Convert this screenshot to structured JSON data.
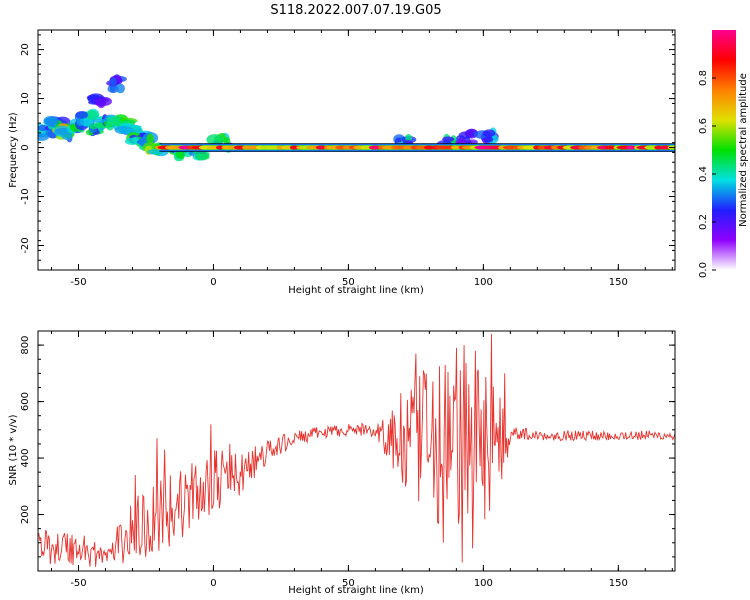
{
  "figure": {
    "title": "S118.2022.007.07.19.G05"
  },
  "chart_data": [
    {
      "type": "heatmap",
      "xlabel": "Height of straight line (km)",
      "ylabel": "Frequency (Hz)",
      "xlim": [
        -65,
        171
      ],
      "ylim": [
        -25,
        24
      ],
      "x_ticks": [
        "-50",
        "0",
        "50",
        "100",
        "150"
      ],
      "x_tick_values": [
        -50,
        0,
        50,
        100,
        150
      ],
      "y_ticks": [
        "-20",
        "-10",
        "0",
        "10",
        "20"
      ],
      "y_tick_values": [
        -20,
        -10,
        0,
        10,
        20
      ],
      "ridge_frequency_hz": 0,
      "ridge_start_km": -20,
      "ridge_end_km": 171,
      "blobs": [
        {
          "x": -62,
          "y": 3,
          "a": 0.3
        },
        {
          "x": -58,
          "y": 5,
          "a": 0.4
        },
        {
          "x": -55,
          "y": 3,
          "a": 0.55
        },
        {
          "x": -50,
          "y": 4,
          "a": 0.45
        },
        {
          "x": -47,
          "y": 6,
          "a": 0.35
        },
        {
          "x": -44,
          "y": 4,
          "a": 0.4
        },
        {
          "x": -42,
          "y": 10,
          "a": 0.2
        },
        {
          "x": -40,
          "y": 5,
          "a": 0.4
        },
        {
          "x": -36,
          "y": 13,
          "a": 0.25
        },
        {
          "x": -34,
          "y": 5,
          "a": 0.45
        },
        {
          "x": -31,
          "y": 4,
          "a": 0.35
        },
        {
          "x": -28,
          "y": 2,
          "a": 0.4
        },
        {
          "x": -25,
          "y": 1,
          "a": 0.45
        },
        {
          "x": -22,
          "y": 0,
          "a": 0.5
        },
        {
          "x": -12,
          "y": -1,
          "a": 0.45
        },
        {
          "x": -5,
          "y": -1,
          "a": 0.35
        },
        {
          "x": 3,
          "y": 1,
          "a": 0.4
        },
        {
          "x": 70,
          "y": 1,
          "a": 0.35
        },
        {
          "x": 88,
          "y": 1,
          "a": 0.4
        },
        {
          "x": 94,
          "y": 2,
          "a": 0.3
        },
        {
          "x": 102,
          "y": 2,
          "a": 0.35
        }
      ],
      "colorbar": {
        "label": "Normalized spectral amplitude",
        "ticks": [
          "0.0",
          "0.2",
          "0.4",
          "0.6",
          "0.8"
        ],
        "tick_values": [
          0,
          0.2,
          0.4,
          0.6,
          0.8
        ],
        "range": [
          0,
          1
        ],
        "colors": [
          "#ffffff",
          "#9000ff",
          "#2020ff",
          "#00e0e0",
          "#00e000",
          "#e0e000",
          "#ff8000",
          "#ff0000",
          "#ff0090"
        ]
      }
    },
    {
      "type": "line",
      "xlabel": "Height of straight line (km)",
      "ylabel": "SNR (10 * v/v)",
      "xlim": [
        -65,
        171
      ],
      "ylim": [
        0,
        850
      ],
      "x_ticks": [
        "-50",
        "0",
        "50",
        "100",
        "150"
      ],
      "x_tick_values": [
        -50,
        0,
        50,
        100,
        150
      ],
      "y_ticks": [
        "200",
        "400",
        "600",
        "800"
      ],
      "y_tick_values": [
        200,
        400,
        600,
        800
      ],
      "line_color": "#e8332e",
      "baseline_x": [
        -65,
        -50,
        -40,
        -30,
        -20,
        -10,
        0,
        10,
        20,
        30,
        40,
        50,
        58,
        62,
        66,
        70,
        80,
        90,
        100,
        104,
        108,
        110,
        120,
        140,
        171
      ],
      "baseline_y": [
        90,
        80,
        50,
        140,
        200,
        250,
        320,
        340,
        420,
        470,
        490,
        500,
        500,
        490,
        470,
        450,
        450,
        450,
        450,
        450,
        470,
        490,
        480,
        480,
        480
      ],
      "noise_x": [
        -65,
        -50,
        -40,
        -30,
        -20,
        -10,
        0,
        10,
        20,
        30,
        50,
        60,
        66,
        70,
        80,
        95,
        105,
        108,
        110,
        120,
        171
      ],
      "noise_amp": [
        60,
        70,
        40,
        110,
        160,
        120,
        110,
        80,
        45,
        25,
        20,
        25,
        130,
        190,
        280,
        330,
        230,
        150,
        25,
        18,
        18
      ],
      "spikes": [
        {
          "x": -29,
          "y": 340
        },
        {
          "x": -21,
          "y": 470
        },
        {
          "x": -18,
          "y": 430
        },
        {
          "x": -1,
          "y": 520
        },
        {
          "x": 6,
          "y": 450
        },
        {
          "x": 75,
          "y": 770
        },
        {
          "x": 86,
          "y": 730
        },
        {
          "x": 90,
          "y": 790
        },
        {
          "x": 93,
          "y": 800
        },
        {
          "x": 97,
          "y": 780
        },
        {
          "x": 103,
          "y": 840
        },
        {
          "x": 108,
          "y": 700
        },
        {
          "x": 92,
          "y": 30
        },
        {
          "x": 96,
          "y": 80
        },
        {
          "x": 85,
          "y": 100
        }
      ]
    }
  ]
}
